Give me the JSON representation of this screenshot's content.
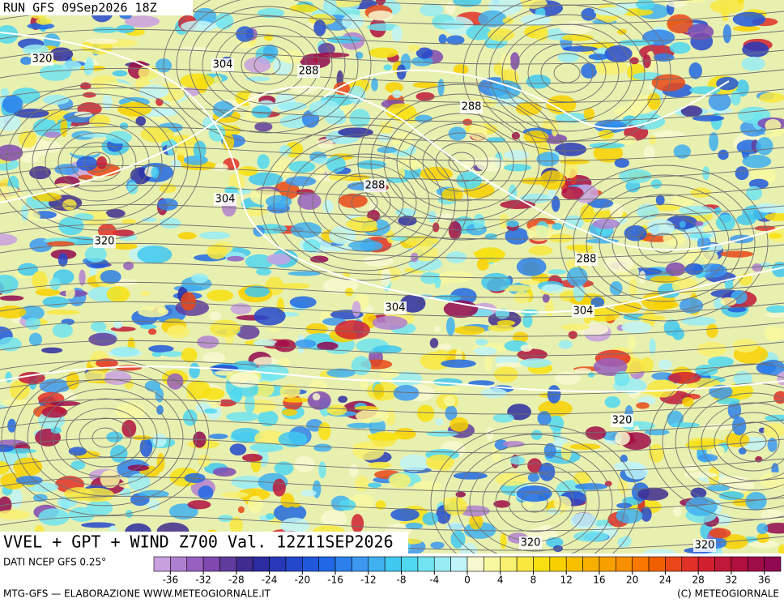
{
  "header": {
    "run": "RUN GFS 09Sep2026 18Z"
  },
  "map": {
    "title": "VVEL + GPT + WIND Z700 Val. 12Z11SEP2026",
    "contour_labels": [
      320,
      304,
      288,
      288,
      288,
      304,
      320,
      288,
      304,
      304,
      320,
      320,
      320
    ]
  },
  "colorbar": {
    "source": "DATI NCEP GFS 0.25°",
    "range": [
      -38,
      38
    ],
    "ticks": [
      -36,
      -32,
      -28,
      -24,
      -20,
      -16,
      -12,
      -8,
      -4,
      0,
      4,
      8,
      12,
      16,
      20,
      24,
      28,
      32,
      36
    ],
    "colors": [
      "#c8a0e0",
      "#b080d0",
      "#9860c0",
      "#8048b0",
      "#603c9c",
      "#402c90",
      "#2c2ca0",
      "#2838b8",
      "#2448cc",
      "#2058dc",
      "#2068e4",
      "#2c80ec",
      "#3c98f0",
      "#40b0f0",
      "#40c8f0",
      "#50d8f0",
      "#70e4f0",
      "#98ecf4",
      "#c0f4f8",
      "#f8f8d0",
      "#f8f8a0",
      "#f8f070",
      "#f8e840",
      "#f8e010",
      "#f8d000",
      "#f8c000",
      "#f8b000",
      "#f8a000",
      "#f89000",
      "#f87800",
      "#f06000",
      "#e84818",
      "#e03028",
      "#d02030",
      "#c01838",
      "#b01040",
      "#a00c48",
      "#900850"
    ]
  },
  "footer": {
    "left": "MTG-GFS — ELABORAZIONE WWW.METEOGIORNALE.IT",
    "right": "(C) METEOGIORNALE"
  }
}
